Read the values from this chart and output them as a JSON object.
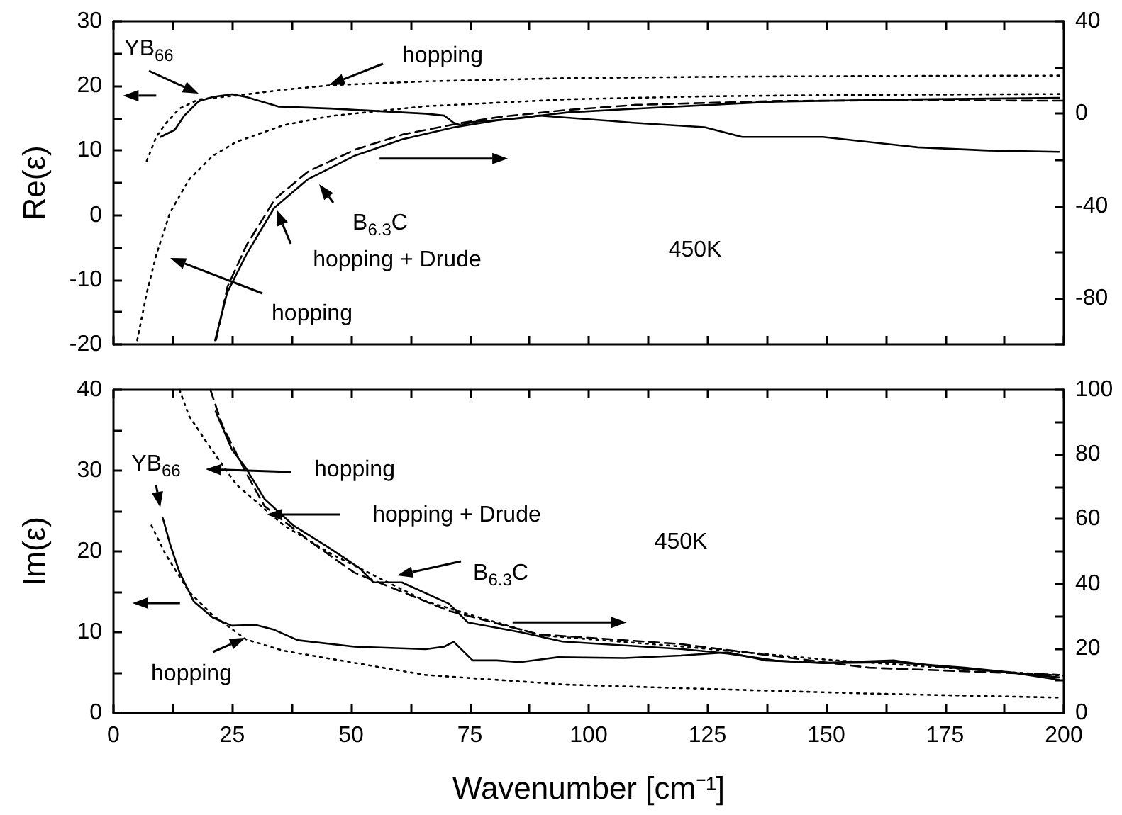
{
  "chart_data": [
    {
      "type": "line",
      "ylabel": "Re(ε)",
      "xlim": [
        0,
        200
      ],
      "xticks": [
        0,
        {
          "value": 12.5,
          "label": null
        },
        25,
        {
          "value": 37.5,
          "label": null
        },
        50,
        {
          "value": 62.5,
          "label": null
        },
        75,
        {
          "value": 87.5,
          "label": null
        },
        100,
        {
          "value": 112.5,
          "label": null
        },
        125,
        {
          "value": 137.5,
          "label": null
        },
        150,
        {
          "value": 162.5,
          "label": null
        },
        175,
        {
          "value": 187.5,
          "label": null
        },
        200
      ],
      "ylim": [
        -20,
        30
      ],
      "yticks": [
        -20,
        {
          "value": -15,
          "label": null
        },
        -10,
        {
          "value": -5,
          "label": null
        },
        0,
        {
          "value": 5,
          "label": null
        },
        10,
        {
          "value": 15,
          "label": null
        },
        20,
        {
          "value": 25,
          "label": null
        },
        30
      ],
      "y2lim": [
        -100,
        40
      ],
      "y2ticks": [
        {
          "value": -100,
          "label": null
        },
        -80,
        {
          "value": -60,
          "label": null
        },
        -40,
        {
          "value": -20,
          "label": null
        },
        0,
        {
          "value": 20,
          "label": null
        },
        40
      ],
      "tick_labels": "y",
      "grid": false,
      "marker": "none",
      "annotations": [
        "YB$_{66}$",
        "hopping",
        "B$_{6.3}$C",
        "hopping + Drude",
        "hopping",
        "450K"
      ],
      "series": [
        {
          "color": "#000000",
          "line_style": "solid",
          "x": [
            9.9,
            12.9,
            14.9,
            17.9,
            20.9,
            24.9,
            27.9,
            34.8,
            45.7,
            65.7,
            69.6,
            71.6,
            73.1,
            75.5,
            85.6,
            89.6,
            104.5,
            109.4,
            124.4,
            132.3,
            149.3,
            169.2,
            184,
            199
          ],
          "values": [
            12.1,
            13.2,
            15.4,
            17.6,
            18.3,
            18.7,
            18.3,
            16.8,
            16.5,
            15.7,
            15.4,
            14.3,
            13.9,
            14.4,
            15.0,
            15.4,
            14.6,
            14.3,
            13.6,
            12.1,
            12.1,
            10.5,
            10.0,
            9.8
          ]
        },
        {
          "color": "#000000",
          "line_style": "dotted",
          "x": [
            7,
            9,
            11,
            13.9,
            17.9,
            25.8,
            35.8,
            45.7,
            65.7,
            95.5,
            125,
            150,
            200
          ],
          "values": [
            8.4,
            12.1,
            14.2,
            16.5,
            17.9,
            18.5,
            19.4,
            20.1,
            20.7,
            21.2,
            21.4,
            21.5,
            21.6
          ]
        },
        {
          "color": "#000000",
          "line_style": "solid",
          "axis": "y2",
          "x": [
            21.4,
            23.9,
            27.9,
            33.8,
            40.8,
            50.7,
            60.7,
            71.6,
            80.6,
            95.5,
            109.4,
            139.3,
            169.2,
            199
          ],
          "values": [
            -98.2,
            -77.7,
            -61.3,
            -40.9,
            -28.6,
            -18.3,
            -11.2,
            -6.0,
            -3.0,
            0.5,
            2.1,
            5.2,
            6.2,
            6.8
          ]
        },
        {
          "color": "#000000",
          "line_style": "dashed",
          "axis": "y2",
          "x": [
            21.6,
            24,
            28,
            34,
            41,
            51,
            61,
            72,
            81,
            95,
            110,
            140,
            170,
            200
          ],
          "values": [
            -98,
            -75,
            -57,
            -37,
            -25,
            -15.5,
            -9,
            -4.5,
            -1.5,
            1.5,
            3.8,
            5.5,
            5.8,
            5.6
          ]
        },
        {
          "color": "#000000",
          "line_style": "dotted",
          "axis": "y2",
          "x": [
            5,
            7,
            9,
            11.9,
            15.9,
            20.9,
            25.9,
            35.8,
            45.8,
            65.7,
            95.5,
            125,
            150,
            200
          ],
          "values": [
            -98.2,
            -77.7,
            -61.3,
            -42.9,
            -28.6,
            -18.3,
            -12.2,
            -5.0,
            -1.0,
            3.2,
            6.2,
            7.5,
            8,
            8.5
          ]
        }
      ]
    },
    {
      "type": "line",
      "xlabel": "Wavenumber [cm⁻¹]",
      "ylabel": "Im(ε)",
      "xlim": [
        0,
        200
      ],
      "xticks": [
        0,
        {
          "value": 12.5,
          "label": null
        },
        25,
        {
          "value": 37.5,
          "label": null
        },
        50,
        {
          "value": 62.5,
          "label": null
        },
        75,
        {
          "value": 87.5,
          "label": null
        },
        100,
        {
          "value": 112.5,
          "label": null
        },
        125,
        {
          "value": 137.5,
          "label": null
        },
        150,
        {
          "value": 162.5,
          "label": null
        },
        175,
        {
          "value": 187.5,
          "label": null
        },
        200
      ],
      "ylim": [
        0,
        40
      ],
      "yticks": [
        0,
        {
          "value": 5,
          "label": null
        },
        10,
        {
          "value": 15,
          "label": null
        },
        20,
        {
          "value": 25,
          "label": null
        },
        30,
        {
          "value": 35,
          "label": null
        },
        40
      ],
      "y2lim": [
        0,
        100
      ],
      "y2ticks": [
        0,
        {
          "value": 10,
          "label": null
        },
        20,
        {
          "value": 30,
          "label": null
        },
        40,
        {
          "value": 50,
          "label": null
        },
        60,
        {
          "value": 70,
          "label": null
        },
        80,
        {
          "value": 90,
          "label": null
        },
        100
      ],
      "grid": false,
      "marker": "none",
      "annotations": [
        "YB$_{66}$",
        "hopping",
        "hopping + Drude",
        "B$_{6.3}$C",
        "hopping",
        "450K"
      ],
      "series": [
        {
          "color": "#000000",
          "line_style": "solid",
          "x": [
            10.4,
            11.9,
            13.9,
            16.9,
            20.9,
            24.9,
            29.9,
            33.8,
            38.8,
            50.7,
            65.7,
            69.6,
            71.6,
            75.6,
            80.6,
            85.6,
            93.5,
            107.5,
            119.4,
            129.3,
            137.3,
            149.3,
            164.2,
            174.1,
            189,
            199
          ],
          "values": [
            24.1,
            20.9,
            17.4,
            13.8,
            11.8,
            10.8,
            10.9,
            10.3,
            9.0,
            8.2,
            7.9,
            8.2,
            8.8,
            6.5,
            6.5,
            6.3,
            6.9,
            6.8,
            7.1,
            7.5,
            6.5,
            6.2,
            6.5,
            5.7,
            5.0,
            4.1
          ]
        },
        {
          "color": "#000000",
          "line_style": "dotted",
          "x": [
            8,
            10.9,
            15.9,
            20.9,
            27.9,
            35.8,
            50.7,
            65.7,
            95.5,
            129.3,
            159,
            199
          ],
          "values": [
            23.2,
            19.7,
            15.0,
            12.1,
            9.1,
            7.7,
            6.2,
            4.7,
            3.5,
            2.9,
            2.4,
            1.9
          ]
        },
        {
          "color": "#000000",
          "line_style": "solid",
          "axis": "y2",
          "x": [
            21.5,
            24.9,
            27.9,
            31.8,
            37.8,
            45.8,
            51.7,
            54.7,
            60.7,
            70.6,
            74.6,
            85.6,
            94.5,
            119.4,
            129.3,
            139.3,
            149.3,
            164.2,
            179.1,
            199
          ],
          "values": [
            93.3,
            81.6,
            75.7,
            66.2,
            58.1,
            50.7,
            44.9,
            40.4,
            40.4,
            33.8,
            28.0,
            25.0,
            22.1,
            19.8,
            18.4,
            16.2,
            15.4,
            15.7,
            14.0,
            11.0
          ]
        },
        {
          "color": "#000000",
          "line_style": "dashed",
          "axis": "y2",
          "x": [
            20.4,
            22.9,
            27.9,
            31.8,
            40.8,
            50.7,
            60.7,
            70.6,
            85.6,
            89.6,
            119.4,
            139.3,
            159,
            199
          ],
          "values": [
            100,
            89,
            74.3,
            64,
            53.7,
            43.4,
            37.5,
            31.6,
            25.8,
            24.3,
            21.3,
            17.6,
            14,
            11.8
          ]
        },
        {
          "color": "#000000",
          "line_style": "dotted",
          "axis": "y2",
          "x": [
            13.9,
            15.9,
            19.9,
            25.9,
            35.8,
            45.7,
            55.7,
            65.7,
            75.5,
            90,
            120,
            150,
            200
          ],
          "values": [
            100,
            91.9,
            83.1,
            70.6,
            58.1,
            49.3,
            41.9,
            34.6,
            30.2,
            24,
            20.5,
            16.5,
            11.5
          ]
        }
      ]
    }
  ]
}
